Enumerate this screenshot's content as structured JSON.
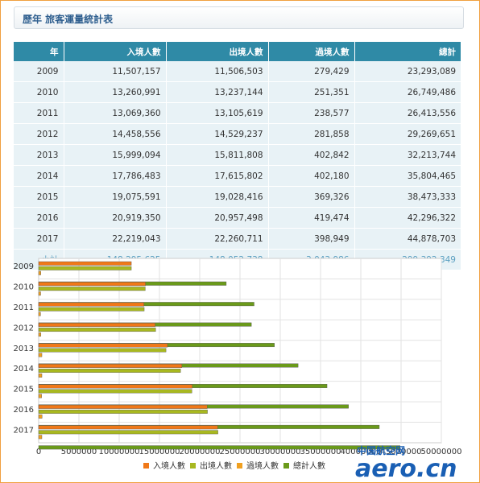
{
  "page": {
    "title": "歷年 旅客運量統計表"
  },
  "table": {
    "headers": [
      "年",
      "入境人數",
      "出境人數",
      "過境人數",
      "總計"
    ],
    "rows": [
      [
        "2009",
        "11,507,157",
        "11,506,503",
        "279,429",
        "23,293,089"
      ],
      [
        "2010",
        "13,260,991",
        "13,237,144",
        "251,351",
        "26,749,486"
      ],
      [
        "2011",
        "13,069,360",
        "13,105,619",
        "238,577",
        "26,413,556"
      ],
      [
        "2012",
        "14,458,556",
        "14,529,237",
        "281,858",
        "29,269,651"
      ],
      [
        "2013",
        "15,999,094",
        "15,811,808",
        "402,842",
        "32,213,744"
      ],
      [
        "2014",
        "17,786,483",
        "17,615,802",
        "402,180",
        "35,804,465"
      ],
      [
        "2015",
        "19,075,591",
        "19,028,416",
        "369,326",
        "38,473,333"
      ],
      [
        "2016",
        "20,919,350",
        "20,957,498",
        "419,474",
        "42,296,322"
      ],
      [
        "2017",
        "22,219,043",
        "22,260,711",
        "398,949",
        "44,878,703"
      ]
    ],
    "total": [
      "小計",
      "148,295,625",
      "148,052,738",
      "3,043,986",
      "299,392,349"
    ]
  },
  "chart_data": {
    "type": "bar",
    "orientation": "horizontal",
    "categories": [
      "2009",
      "2010",
      "2011",
      "2012",
      "2013",
      "2014",
      "2015",
      "2016",
      "2017"
    ],
    "series": [
      {
        "name": "入境人數",
        "color": "#f07818",
        "values": [
          11507157,
          13260991,
          13069360,
          14458556,
          15999094,
          17786483,
          19075591,
          20919350,
          22219043
        ]
      },
      {
        "name": "出境人數",
        "color": "#a8b820",
        "values": [
          11506503,
          13237144,
          13105619,
          14529237,
          15811808,
          17615802,
          19028416,
          20957498,
          22260711
        ]
      },
      {
        "name": "過境人數",
        "color": "#f0a020",
        "values": [
          279429,
          251351,
          238577,
          281858,
          402842,
          402180,
          369326,
          419474,
          398949
        ]
      },
      {
        "name": "總計人數",
        "color": "#6a9a1a",
        "values": [
          23293089,
          26749486,
          26413556,
          29269651,
          32213744,
          35804465,
          38473333,
          42296322,
          44878703
        ]
      }
    ],
    "xlim": [
      0,
      50000000
    ],
    "xticks": [
      "0",
      "5000000",
      "10000000",
      "15000000",
      "20000000",
      "25000000",
      "30000000",
      "35000000",
      "40000000",
      "45000000",
      "50000000"
    ],
    "grid": true,
    "legend": "bottom"
  },
  "watermark": {
    "cn": "中国航空网",
    "en": "aero.cn"
  }
}
